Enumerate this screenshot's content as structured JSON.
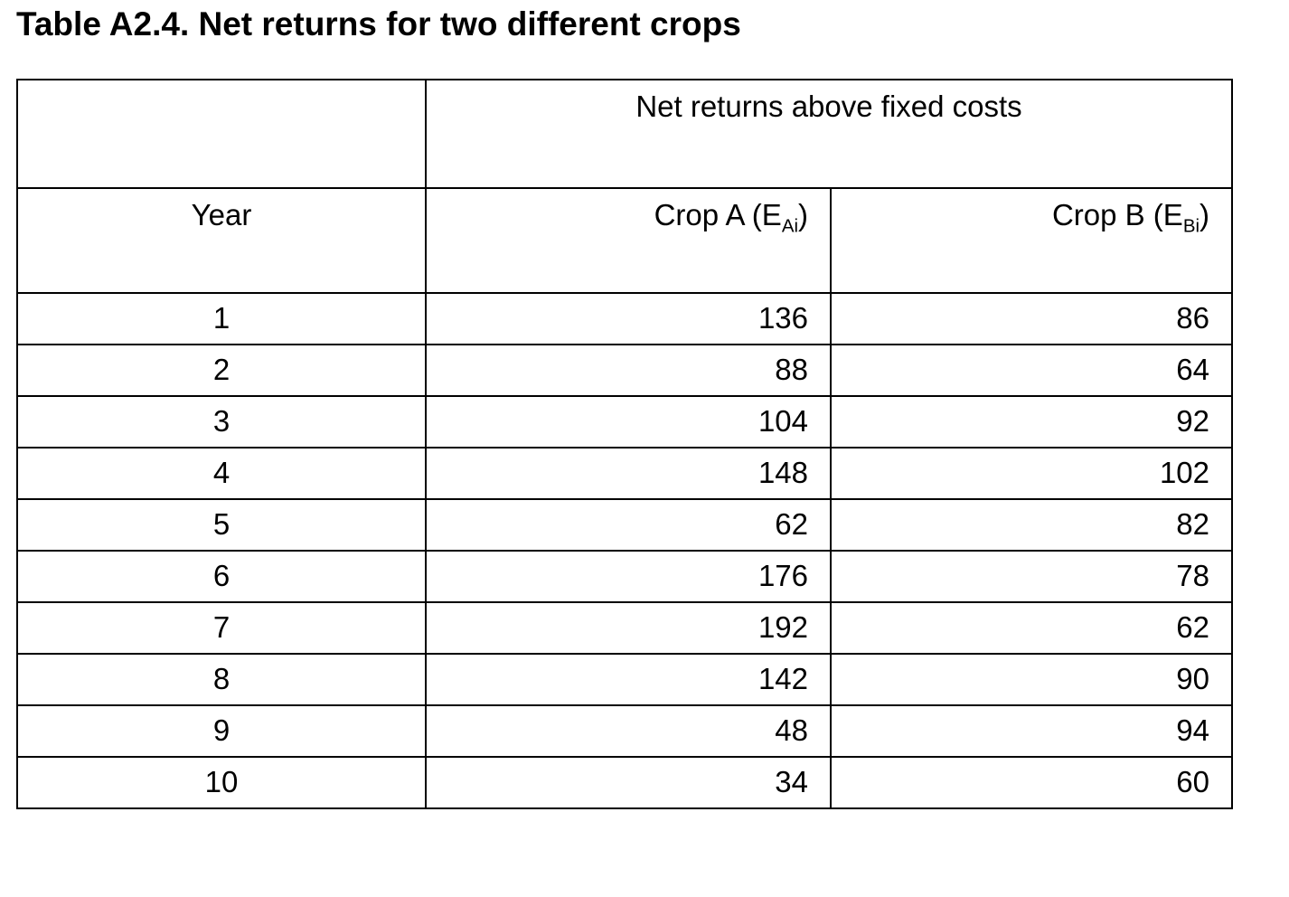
{
  "page": {
    "title": "Table A2.4. Net returns for two different crops"
  },
  "table": {
    "spanning_header": "Net returns above fixed costs",
    "columns": {
      "year": "Year",
      "crop_a": {
        "prefix": "Crop A (E",
        "sub": "Ai",
        "suffix": ")"
      },
      "crop_b": {
        "prefix": "Crop B (E",
        "sub": "Bi",
        "suffix": ")"
      }
    },
    "rows": [
      {
        "year": "1",
        "crop_a": "136",
        "crop_b": "86"
      },
      {
        "year": "2",
        "crop_a": "88",
        "crop_b": "64"
      },
      {
        "year": "3",
        "crop_a": "104",
        "crop_b": "92"
      },
      {
        "year": "4",
        "crop_a": "148",
        "crop_b": "102"
      },
      {
        "year": "5",
        "crop_a": "62",
        "crop_b": "82"
      },
      {
        "year": "6",
        "crop_a": "176",
        "crop_b": "78"
      },
      {
        "year": "7",
        "crop_a": "192",
        "crop_b": "62"
      },
      {
        "year": "8",
        "crop_a": "142",
        "crop_b": "90"
      },
      {
        "year": "9",
        "crop_a": "48",
        "crop_b": "94"
      },
      {
        "year": "10",
        "crop_a": "34",
        "crop_b": "60"
      }
    ]
  },
  "chart_data": {
    "type": "table",
    "title": "Table A2.4. Net returns for two different crops",
    "group_header": "Net returns above fixed costs",
    "columns": [
      "Year",
      "Crop A (EAi)",
      "Crop B (EBi)"
    ],
    "x": [
      1,
      2,
      3,
      4,
      5,
      6,
      7,
      8,
      9,
      10
    ],
    "series": [
      {
        "name": "Crop A (EAi)",
        "values": [
          136,
          88,
          104,
          148,
          62,
          176,
          192,
          142,
          48,
          34
        ]
      },
      {
        "name": "Crop B (EBi)",
        "values": [
          86,
          64,
          92,
          102,
          82,
          78,
          62,
          90,
          94,
          60
        ]
      }
    ]
  }
}
